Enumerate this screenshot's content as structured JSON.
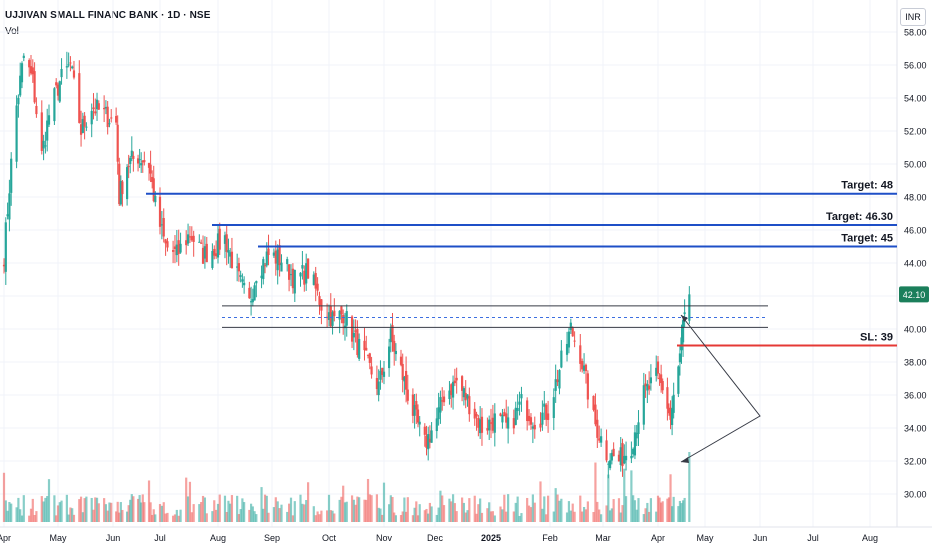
{
  "header": {
    "title": "UJJIVAN SMALL FINANC BANK · 1D · NSE",
    "indicator": "Vol",
    "currency": "INR"
  },
  "chart_data": {
    "type": "candlestick",
    "x_tick_labels": [
      "Apr",
      "May",
      "Jun",
      "Jul",
      "Aug",
      "Sep",
      "Oct",
      "Nov",
      "Dec",
      "2025",
      "Feb",
      "Mar",
      "Apr",
      "May",
      "Jun",
      "Jul",
      "Aug"
    ],
    "y_tick_labels": [
      "30.00",
      "32.00",
      "34.00",
      "36.00",
      "38.00",
      "40.00",
      "42.00",
      "44.00",
      "46.00",
      "48.00",
      "50.00",
      "52.00",
      "54.00",
      "56.00",
      "58.00"
    ],
    "ylim": [
      28.5,
      58
    ],
    "last_price": 42.1,
    "last_price_label": "42.10",
    "levels": [
      {
        "name": "target-48",
        "label": "Target: 48",
        "value": 48.2,
        "color": "#1e4fc7"
      },
      {
        "name": "target-46-30",
        "label": "Target: 46.30",
        "value": 46.3,
        "color": "#1e4fc7"
      },
      {
        "name": "target-45",
        "label": "Target: 45",
        "value": 45.0,
        "color": "#1e4fc7"
      },
      {
        "name": "stop-loss",
        "label": "SL: 39",
        "value": 39.0,
        "color": "#e53935"
      }
    ],
    "zone": {
      "upper": 41.4,
      "middle": 40.7,
      "lower": 40.1
    },
    "price_path": [
      [
        "2024-04-01",
        44.5
      ],
      [
        "2024-04-05",
        50
      ],
      [
        "2024-04-08",
        53.5
      ],
      [
        "2024-04-12",
        56.5
      ],
      [
        "2024-04-17",
        55
      ],
      [
        "2024-04-22",
        50.5
      ],
      [
        "2024-04-26",
        53
      ],
      [
        "2024-05-02",
        55
      ],
      [
        "2024-05-08",
        56
      ],
      [
        "2024-05-14",
        52
      ],
      [
        "2024-05-20",
        53.5
      ],
      [
        "2024-05-27",
        53
      ],
      [
        "2024-06-03",
        52.5
      ],
      [
        "2024-06-05",
        48
      ],
      [
        "2024-06-10",
        50
      ],
      [
        "2024-06-17",
        50.5
      ],
      [
        "2024-06-24",
        50
      ],
      [
        "2024-06-28",
        47.5
      ],
      [
        "2024-07-04",
        45
      ],
      [
        "2024-07-10",
        44.5
      ],
      [
        "2024-07-17",
        45.8
      ],
      [
        "2024-07-24",
        44.5
      ],
      [
        "2024-07-31",
        45
      ],
      [
        "2024-08-05",
        45.5
      ],
      [
        "2024-08-12",
        43.2
      ],
      [
        "2024-08-19",
        41.5
      ],
      [
        "2024-08-23",
        43.5
      ],
      [
        "2024-08-30",
        44.5
      ],
      [
        "2024-09-06",
        44.2
      ],
      [
        "2024-09-13",
        43
      ],
      [
        "2024-09-20",
        43.5
      ],
      [
        "2024-09-27",
        41.5
      ],
      [
        "2024-10-04",
        40.5
      ],
      [
        "2024-10-09",
        41
      ],
      [
        "2024-10-15",
        39.5
      ],
      [
        "2024-10-22",
        38
      ],
      [
        "2024-10-29",
        36.5
      ],
      [
        "2024-11-05",
        39.5
      ],
      [
        "2024-11-11",
        37.5
      ],
      [
        "2024-11-18",
        35
      ],
      [
        "2024-11-25",
        33
      ],
      [
        "2024-12-02",
        34.5
      ],
      [
        "2024-12-06",
        36
      ],
      [
        "2024-12-13",
        36.8
      ],
      [
        "2024-12-20",
        35.5
      ],
      [
        "2024-12-27",
        34
      ],
      [
        "2025-01-03",
        34.5
      ],
      [
        "2025-01-10",
        34
      ],
      [
        "2025-01-17",
        35.5
      ],
      [
        "2025-01-24",
        34.5
      ],
      [
        "2025-01-31",
        35
      ],
      [
        "2025-02-07",
        38
      ],
      [
        "2025-02-12",
        40
      ],
      [
        "2025-02-17",
        38.5
      ],
      [
        "2025-02-24",
        34.5
      ],
      [
        "2025-03-03",
        32.5
      ],
      [
        "2025-03-10",
        32
      ],
      [
        "2025-03-17",
        33
      ],
      [
        "2025-03-24",
        36
      ],
      [
        "2025-03-31",
        37
      ],
      [
        "2025-04-04",
        36.5
      ],
      [
        "2025-04-09",
        34.5
      ],
      [
        "2025-04-14",
        37.5
      ],
      [
        "2025-04-17",
        40
      ],
      [
        "2025-04-21",
        42.1
      ]
    ]
  }
}
